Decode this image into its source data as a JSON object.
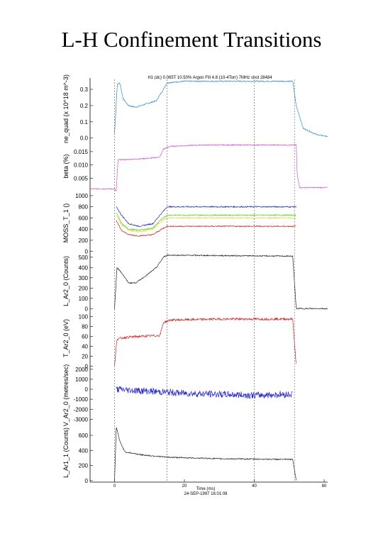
{
  "slide": {
    "title": "L-H Confinement Transitions"
  },
  "figure": {
    "header": "H1 (dc) 0.065T 10.50% Argon Fill 4.8 (10-4Torr) 7MHz shot 28484",
    "xlabel": "Time (ms)",
    "footer": "24-SEP-1997 16:01:08"
  },
  "chart_data": {
    "type": "line",
    "x": {
      "ticks": [
        0,
        20,
        40,
        60
      ],
      "range": [
        -7,
        61
      ]
    },
    "panels": [
      {
        "ylabel": "ne_quad (x 10^18 m^-3)",
        "color": "#2a8fcf",
        "yticks": [
          "0.3",
          "0.2",
          "0.1",
          "0.0"
        ],
        "ytick_values": [
          0.3,
          0.2,
          0.1,
          0.0
        ],
        "range": [
          -0.01,
          0.37
        ],
        "points": [
          [
            0,
            0.03
          ],
          [
            0.8,
            0.33
          ],
          [
            1.5,
            0.34
          ],
          [
            2.5,
            0.24
          ],
          [
            4,
            0.2
          ],
          [
            6,
            0.19
          ],
          [
            9,
            0.21
          ],
          [
            12,
            0.23
          ],
          [
            14,
            0.3
          ],
          [
            15,
            0.34
          ],
          [
            20,
            0.35
          ],
          [
            30,
            0.35
          ],
          [
            40,
            0.35
          ],
          [
            51,
            0.35
          ],
          [
            52,
            0.2
          ],
          [
            54,
            0.06
          ],
          [
            58,
            0.02
          ],
          [
            61,
            0.01
          ]
        ]
      },
      {
        "ylabel": "beta (%)",
        "color": "#cc55cc",
        "yticks": [
          "0.015",
          "0.010",
          "0.005"
        ],
        "ytick_values": [
          0.015,
          0.01,
          0.005
        ],
        "range": [
          -0.0005,
          0.0195
        ],
        "points": [
          [
            -7,
            0.001
          ],
          [
            0,
            0.001
          ],
          [
            0.5,
            0.0
          ],
          [
            1,
            0.012
          ],
          [
            3,
            0.012
          ],
          [
            10,
            0.0125
          ],
          [
            13,
            0.013
          ],
          [
            14,
            0.016
          ],
          [
            16,
            0.017
          ],
          [
            25,
            0.0175
          ],
          [
            40,
            0.0175
          ],
          [
            52,
            0.0175
          ],
          [
            52.3,
            0.006
          ],
          [
            53,
            0.0015
          ],
          [
            61,
            0.0015
          ]
        ]
      },
      {
        "ylabel": "MOSS_T_1 ()",
        "yticks": [
          "1000",
          "800",
          "600",
          "400",
          "200",
          "0"
        ],
        "ytick_values": [
          1000,
          800,
          600,
          400,
          200,
          0
        ],
        "range": [
          -30,
          1050
        ],
        "series": [
          {
            "color": "#2222aa",
            "points": [
              [
                0.5,
                800
              ],
              [
                2,
                650
              ],
              [
                4,
                500
              ],
              [
                7,
                450
              ],
              [
                11,
                500
              ],
              [
                13,
                650
              ],
              [
                15,
                800
              ],
              [
                52,
                800
              ]
            ]
          },
          {
            "color": "#55cc33",
            "points": [
              [
                0.5,
                700
              ],
              [
                2,
                500
              ],
              [
                4,
                400
              ],
              [
                7,
                380
              ],
              [
                11,
                420
              ],
              [
                13,
                550
              ],
              [
                15,
                650
              ],
              [
                52,
                650
              ]
            ]
          },
          {
            "color": "#dddd22",
            "points": [
              [
                0.5,
                650
              ],
              [
                2,
                480
              ],
              [
                4,
                380
              ],
              [
                7,
                350
              ],
              [
                11,
                400
              ],
              [
                13,
                520
              ],
              [
                15,
                600
              ],
              [
                52,
                600
              ]
            ]
          },
          {
            "color": "#cc2222",
            "points": [
              [
                0.5,
                550
              ],
              [
                2,
                380
              ],
              [
                4,
                300
              ],
              [
                7,
                280
              ],
              [
                11,
                300
              ],
              [
                13,
                380
              ],
              [
                15,
                450
              ],
              [
                52,
                450
              ]
            ]
          }
        ]
      },
      {
        "ylabel": "L_Ar2_0 (Counts)",
        "color": "#222222",
        "yticks": [
          "500",
          "400",
          "300",
          "200",
          "100",
          "0"
        ],
        "ytick_values": [
          500,
          400,
          300,
          200,
          100,
          0
        ],
        "range": [
          -5,
          540
        ],
        "points": [
          [
            0,
            0
          ],
          [
            0.7,
            400
          ],
          [
            2,
            350
          ],
          [
            4,
            250
          ],
          [
            6,
            250
          ],
          [
            9,
            320
          ],
          [
            12,
            400
          ],
          [
            14,
            500
          ],
          [
            15,
            520
          ],
          [
            51,
            510
          ],
          [
            52,
            0
          ],
          [
            61,
            0
          ]
        ]
      },
      {
        "ylabel": "T_Ar2_0 (eV)",
        "color": "#cc2222",
        "yticks": [
          "100",
          "80",
          "60",
          "40",
          "20",
          "0"
        ],
        "ytick_values": [
          100,
          80,
          60,
          40,
          20,
          0
        ],
        "range": [
          -2,
          115
        ],
        "points": [
          [
            0,
            0
          ],
          [
            0.7,
            55
          ],
          [
            3,
            58
          ],
          [
            7,
            60
          ],
          [
            13,
            62
          ],
          [
            14,
            88
          ],
          [
            16,
            93
          ],
          [
            30,
            95
          ],
          [
            51,
            95
          ],
          [
            52,
            0
          ]
        ]
      },
      {
        "ylabel": "V_Ar2_0 (metres/sec)",
        "color": "#1e1ec8",
        "yticks": [
          "2000",
          "1000",
          "0",
          "-1000",
          "-2000",
          "-3000"
        ],
        "ytick_values": [
          2000,
          1000,
          0,
          -1000,
          -2000,
          -3000
        ],
        "range": [
          -3400,
          2200
        ],
        "points": [
          [
            0.5,
            0
          ],
          [
            5,
            -100
          ],
          [
            10,
            -200
          ],
          [
            20,
            -400
          ],
          [
            30,
            -500
          ],
          [
            40,
            -600
          ],
          [
            51,
            -500
          ]
        ]
      },
      {
        "ylabel": "L_Ar1_1 (Counts)",
        "color": "#222222",
        "yticks": [
          "600",
          "400",
          "200",
          "0"
        ],
        "ytick_values": [
          600,
          400,
          200,
          0
        ],
        "range": [
          -20,
          760
        ],
        "points": [
          [
            0,
            0
          ],
          [
            0.5,
            720
          ],
          [
            1.5,
            520
          ],
          [
            3,
            380
          ],
          [
            8,
            340
          ],
          [
            15,
            310
          ],
          [
            30,
            290
          ],
          [
            51,
            280
          ],
          [
            52,
            0
          ]
        ]
      }
    ],
    "markers_ms": [
      0,
      15,
      40,
      51.5
    ]
  }
}
